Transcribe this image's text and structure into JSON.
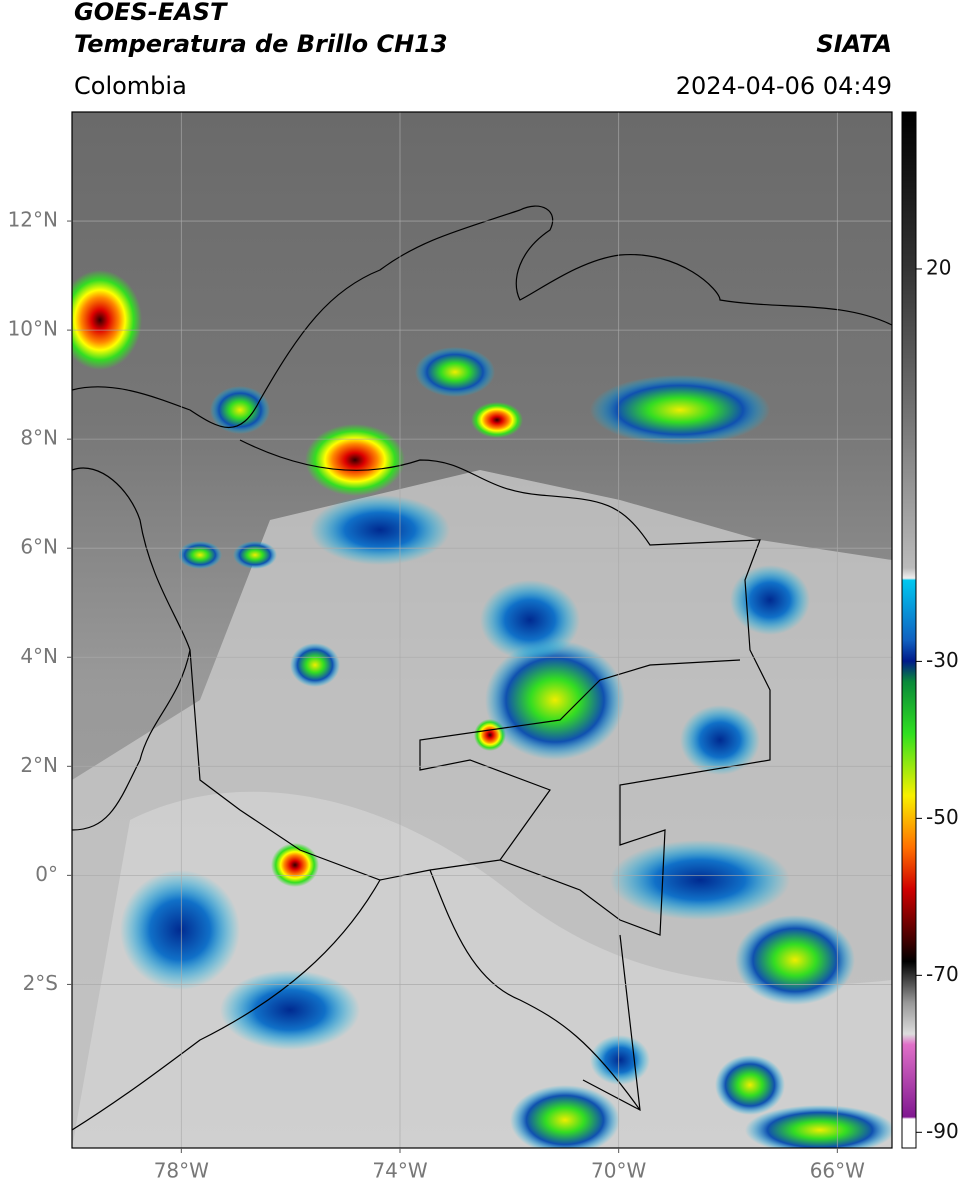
{
  "header": {
    "title": "GOES-EAST",
    "subtitle": "Temperatura de Brillo CH13",
    "source": "SIATA",
    "region": "Colombia",
    "datetime": "2024-04-06 04:49"
  },
  "map": {
    "lon_range": [
      -80,
      -65
    ],
    "lat_range": [
      -5,
      14
    ],
    "lat_ticks": [
      {
        "value": 12,
        "label": "12°N"
      },
      {
        "value": 10,
        "label": "10°N"
      },
      {
        "value": 8,
        "label": "8°N"
      },
      {
        "value": 6,
        "label": "6°N"
      },
      {
        "value": 4,
        "label": "4°N"
      },
      {
        "value": 2,
        "label": "2°N"
      },
      {
        "value": 0,
        "label": "0°"
      },
      {
        "value": -2,
        "label": "2°S"
      }
    ],
    "lon_ticks": [
      {
        "value": -78,
        "label": "78°W"
      },
      {
        "value": -74,
        "label": "74°W"
      },
      {
        "value": -70,
        "label": "70°W"
      },
      {
        "value": -66,
        "label": "66°W"
      }
    ]
  },
  "colorbar": {
    "range": [
      -92,
      40
    ],
    "ticks": [
      20,
      -30,
      -50,
      -70,
      -90
    ]
  }
}
